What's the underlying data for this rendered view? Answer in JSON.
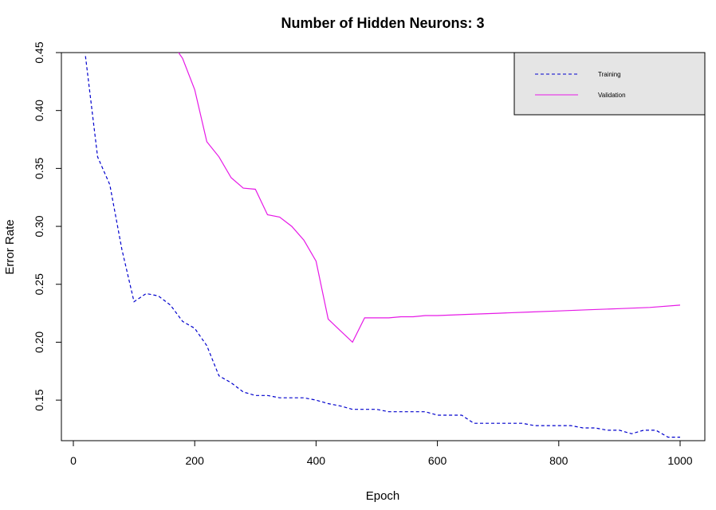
{
  "chart_data": {
    "type": "line",
    "title": "Number of Hidden Neurons: 3",
    "xlabel": "Epoch",
    "ylabel": "Error Rate",
    "xlim": [
      0,
      1000
    ],
    "ylim": [
      0.115,
      0.45
    ],
    "x_ticks": [
      0,
      200,
      400,
      600,
      800,
      1000
    ],
    "x_tick_labels": [
      "0",
      "200",
      "400",
      "600",
      "800",
      "1000"
    ],
    "y_ticks": [
      0.15,
      0.2,
      0.25,
      0.3,
      0.35,
      0.4,
      0.45
    ],
    "y_tick_labels": [
      "0.15",
      "0.20",
      "0.25",
      "0.30",
      "0.35",
      "0.40",
      "0.45"
    ],
    "grid": false,
    "legend_position": "top-right",
    "legend_background": "#e5e5e5",
    "series": [
      {
        "name": "Training",
        "color": "#0000cd",
        "dash": "dashed",
        "x": [
          20,
          40,
          60,
          80,
          100,
          120,
          140,
          160,
          180,
          200,
          220,
          240,
          260,
          280,
          300,
          320,
          340,
          360,
          380,
          400,
          420,
          440,
          460,
          480,
          500,
          520,
          540,
          560,
          580,
          600,
          620,
          640,
          660,
          680,
          700,
          720,
          740,
          760,
          780,
          800,
          820,
          840,
          860,
          880,
          900,
          920,
          940,
          960,
          980,
          1000
        ],
        "y": [
          0.447,
          0.36,
          0.336,
          0.28,
          0.235,
          0.242,
          0.24,
          0.232,
          0.218,
          0.212,
          0.197,
          0.171,
          0.165,
          0.157,
          0.154,
          0.154,
          0.152,
          0.152,
          0.152,
          0.15,
          0.147,
          0.145,
          0.142,
          0.142,
          0.142,
          0.14,
          0.14,
          0.14,
          0.14,
          0.137,
          0.137,
          0.137,
          0.13,
          0.13,
          0.13,
          0.13,
          0.13,
          0.128,
          0.128,
          0.128,
          0.128,
          0.126,
          0.126,
          0.124,
          0.124,
          0.121,
          0.124,
          0.124,
          0.118,
          0.118
        ]
      },
      {
        "name": "Validation",
        "color": "#e619e6",
        "dash": "solid",
        "x": [
          150,
          160,
          180,
          200,
          220,
          240,
          260,
          280,
          300,
          320,
          340,
          360,
          380,
          400,
          420,
          440,
          460,
          480,
          500,
          520,
          540,
          560,
          580,
          600,
          650,
          700,
          750,
          800,
          850,
          900,
          950,
          1000
        ],
        "y": [
          0.475,
          0.46,
          0.445,
          0.418,
          0.373,
          0.36,
          0.342,
          0.333,
          0.332,
          0.31,
          0.308,
          0.3,
          0.288,
          0.27,
          0.22,
          0.21,
          0.2,
          0.221,
          0.221,
          0.221,
          0.222,
          0.222,
          0.223,
          0.223,
          0.224,
          0.225,
          0.226,
          0.227,
          0.228,
          0.229,
          0.23,
          0.232
        ]
      }
    ]
  }
}
